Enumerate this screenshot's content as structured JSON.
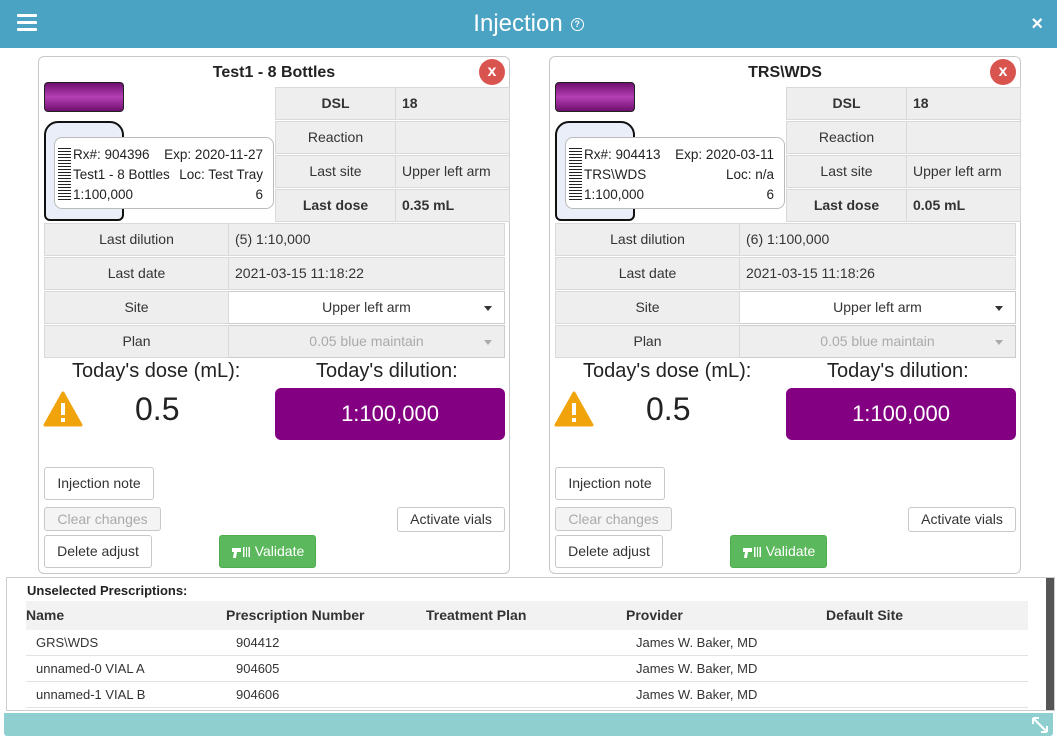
{
  "window": {
    "title": "Injection",
    "help_icon": "question-circle-icon",
    "menu_icon": "hamburger-icon",
    "close_label": "×"
  },
  "panels": [
    {
      "name": "Test1 - 8 Bottles",
      "remove_label": "x",
      "vial": {
        "cap_color": "#a02ca0",
        "rx_label": "Rx#: 904396",
        "exp_label": "Exp: 2020-11-27",
        "name": "Test1 - 8 Bottles",
        "loc_label": "Loc: Test Tray",
        "dilution": "1:100,000",
        "number": "6"
      },
      "mini": [
        {
          "key": "DSL",
          "value": "18",
          "bold": true
        },
        {
          "key": "Reaction",
          "value": "",
          "bold": false
        },
        {
          "key": "Last site",
          "value": "Upper left arm",
          "bold": false
        },
        {
          "key": "Last dose",
          "value": "0.35 mL",
          "bold": true
        }
      ],
      "grid": [
        {
          "key": "Last dilution",
          "value": "(5) 1:10,000"
        },
        {
          "key": "Last date",
          "value": "2021-03-15 11:18:22"
        }
      ],
      "site": {
        "label": "Site",
        "value": "Upper left arm"
      },
      "plan": {
        "label": "Plan",
        "value": "0.05 blue maintain"
      },
      "dose_label": "Today's dose (mL):",
      "dose_value": "0.5",
      "dilution_label": "Today's dilution:",
      "dilution_value": "1:100,000",
      "buttons": {
        "note": "Injection note",
        "clear": "Clear changes",
        "activate": "Activate vials",
        "delete": "Delete adjust",
        "validate": "Validate"
      }
    },
    {
      "name": "TRS\\WDS",
      "remove_label": "x",
      "vial": {
        "cap_color": "#a02ca0",
        "rx_label": "Rx#: 904413",
        "exp_label": "Exp: 2020-03-11",
        "name": "TRS\\WDS",
        "loc_label": "Loc: n/a",
        "dilution": "1:100,000",
        "number": "6"
      },
      "mini": [
        {
          "key": "DSL",
          "value": "18",
          "bold": true
        },
        {
          "key": "Reaction",
          "value": "",
          "bold": false
        },
        {
          "key": "Last site",
          "value": "Upper left arm",
          "bold": false
        },
        {
          "key": "Last dose",
          "value": "0.05 mL",
          "bold": true
        }
      ],
      "grid": [
        {
          "key": "Last dilution",
          "value": "(6) 1:100,000"
        },
        {
          "key": "Last date",
          "value": "2021-03-15 11:18:26"
        }
      ],
      "site": {
        "label": "Site",
        "value": "Upper left arm"
      },
      "plan": {
        "label": "Plan",
        "value": "0.05 blue maintain"
      },
      "dose_label": "Today's dose (mL):",
      "dose_value": "0.5",
      "dilution_label": "Today's dilution:",
      "dilution_value": "1:100,000",
      "buttons": {
        "note": "Injection note",
        "clear": "Clear changes",
        "activate": "Activate vials",
        "delete": "Delete adjust",
        "validate": "Validate"
      }
    }
  ],
  "unselected": {
    "heading": "Unselected Prescriptions:",
    "columns": [
      "Name",
      "Prescription Number",
      "Treatment Plan",
      "Provider",
      "Default Site"
    ],
    "rows": [
      [
        "GRS\\WDS",
        "904412",
        "",
        "James W. Baker, MD",
        ""
      ],
      [
        "unnamed-0 VIAL A",
        "904605",
        "",
        "James W. Baker, MD",
        ""
      ],
      [
        "unnamed-1 VIAL B",
        "904606",
        "",
        "James W. Baker, MD",
        ""
      ]
    ]
  },
  "colors": {
    "titlebar": "#4ba3c3",
    "dilution_box": "#830083",
    "validate": "#5cb85c",
    "remove": "#d9534f",
    "warning": "#f0a30a",
    "footer": "#8fcfcf"
  }
}
